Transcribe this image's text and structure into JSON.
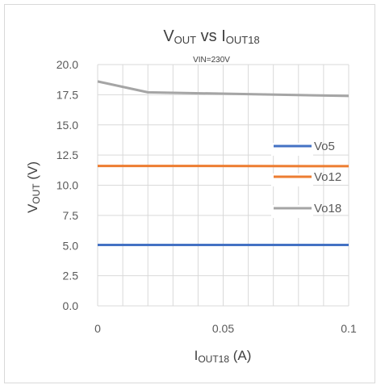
{
  "chart_data": {
    "type": "line",
    "title": {
      "base": "V",
      "sub": "OUT",
      "mid": " vs I",
      "sub2": "OUT18"
    },
    "subtitle": "VIN=230V",
    "xlabel": {
      "base": "I",
      "sub": "OUT18",
      "unit": " (A)"
    },
    "ylabel": {
      "base": "V",
      "sub": "OUT",
      "unit": " (V)"
    },
    "xlim": [
      0,
      0.1
    ],
    "ylim": [
      0,
      20
    ],
    "x_ticks": [
      0,
      0.05,
      0.1
    ],
    "x_tick_labels": [
      "0",
      "0.05",
      "0.1"
    ],
    "y_ticks": [
      0,
      2.5,
      5,
      7.5,
      10,
      12.5,
      15,
      17.5,
      20
    ],
    "y_tick_labels": [
      "0.0",
      "2.5",
      "5.0",
      "7.5",
      "10.0",
      "12.5",
      "15.0",
      "17.5",
      "20.0"
    ],
    "grid": true,
    "legend_position": "right",
    "series": [
      {
        "name": "Vo5",
        "color": "#4472c4",
        "x": [
          0,
          0.1
        ],
        "y": [
          5.05,
          5.05
        ]
      },
      {
        "name": "Vo12",
        "color": "#ed7d31",
        "x": [
          0,
          0.02,
          0.1
        ],
        "y": [
          11.6,
          11.6,
          11.58
        ]
      },
      {
        "name": "Vo18",
        "color": "#a5a5a5",
        "x": [
          0,
          0.02,
          0.1
        ],
        "y": [
          18.6,
          17.7,
          17.4
        ]
      }
    ]
  }
}
